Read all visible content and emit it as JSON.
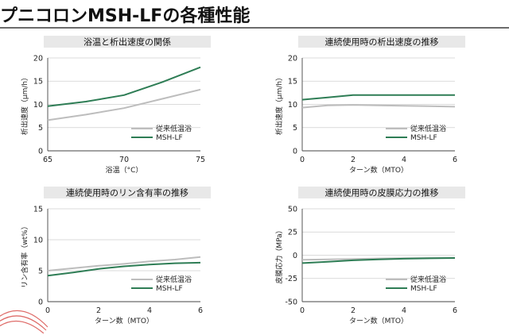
{
  "page": {
    "title": "プニコロンMSH-LFの各種性能"
  },
  "colors": {
    "conventional": "#bdbdbd",
    "msh_lf": "#2e7d55",
    "title_box": "#e8e8e8",
    "deco": "#d9534f"
  },
  "legend": {
    "series_a": "従来低温浴",
    "series_b": "MSH-LF"
  },
  "chart_data": [
    {
      "type": "line",
      "title": "浴温と析出速度の関係",
      "xlabel": "浴温（°C）",
      "ylabel": "析出速度（µm/h）",
      "xlim": [
        65,
        75
      ],
      "ylim": [
        0,
        20
      ],
      "xticks": [
        65,
        70,
        75
      ],
      "yticks": [
        0,
        5,
        10,
        15,
        20
      ],
      "grid": true,
      "legend_position": "bottom-right",
      "series": [
        {
          "name": "従来低温浴",
          "color": "#bdbdbd",
          "x": [
            65,
            67.5,
            70,
            72.5,
            75
          ],
          "y": [
            6.6,
            7.8,
            9.2,
            11.2,
            13.2
          ]
        },
        {
          "name": "MSH-LF",
          "color": "#2e7d55",
          "x": [
            65,
            67.5,
            70,
            72.5,
            75
          ],
          "y": [
            9.6,
            10.6,
            12.0,
            14.8,
            18.0
          ]
        }
      ]
    },
    {
      "type": "line",
      "title": "連続使用時の析出速度の推移",
      "xlabel": "ターン数（MTO）",
      "ylabel": "析出速度（µm/h）",
      "xlim": [
        0,
        6
      ],
      "ylim": [
        0,
        20
      ],
      "xticks": [
        0,
        2,
        4,
        6
      ],
      "yticks": [
        0,
        5,
        10,
        15,
        20
      ],
      "grid": true,
      "legend_position": "bottom-right",
      "series": [
        {
          "name": "従来低温浴",
          "color": "#bdbdbd",
          "x": [
            0,
            1,
            2,
            3,
            4,
            5,
            6
          ],
          "y": [
            9.3,
            9.8,
            9.9,
            9.8,
            9.7,
            9.6,
            9.5
          ]
        },
        {
          "name": "MSH-LF",
          "color": "#2e7d55",
          "x": [
            0,
            1,
            2,
            3,
            4,
            5,
            6
          ],
          "y": [
            11.0,
            11.5,
            12.0,
            12.0,
            12.0,
            12.0,
            12.0
          ]
        }
      ]
    },
    {
      "type": "line",
      "title": "連続使用時のリン含有率の推移",
      "xlabel": "ターン数（MTO）",
      "ylabel": "リン含有率（wt%）",
      "xlim": [
        0,
        6
      ],
      "ylim": [
        0,
        15
      ],
      "xticks": [
        0,
        2,
        4,
        6
      ],
      "yticks": [
        0,
        5,
        10,
        15
      ],
      "grid": true,
      "legend_position": "bottom-right",
      "series": [
        {
          "name": "従来低温浴",
          "color": "#bdbdbd",
          "x": [
            0,
            1,
            2,
            3,
            4,
            5,
            6
          ],
          "y": [
            5.0,
            5.4,
            5.8,
            6.1,
            6.5,
            6.8,
            7.2
          ]
        },
        {
          "name": "MSH-LF",
          "color": "#2e7d55",
          "x": [
            0,
            1,
            2,
            3,
            4,
            5,
            6
          ],
          "y": [
            4.2,
            4.7,
            5.3,
            5.7,
            6.0,
            6.2,
            6.3
          ]
        }
      ]
    },
    {
      "type": "line",
      "title": "連続使用時の皮膜応力の推移",
      "xlabel": "ターン数（MTO）",
      "ylabel": "皮膜応力（MPa）",
      "xlim": [
        0,
        6
      ],
      "ylim": [
        -50,
        50
      ],
      "xticks": [
        0,
        2,
        4,
        6
      ],
      "yticks": [
        -50,
        -25,
        0,
        25,
        50
      ],
      "grid": true,
      "legend_position": "bottom-right",
      "series": [
        {
          "name": "従来低温浴",
          "color": "#bdbdbd",
          "x": [
            0,
            1,
            2,
            3,
            4,
            5,
            6
          ],
          "y": [
            -5.0,
            -4.5,
            -4.0,
            -3.5,
            -3.2,
            -3.0,
            -2.8
          ]
        },
        {
          "name": "MSH-LF",
          "color": "#2e7d55",
          "x": [
            0,
            1,
            2,
            3,
            4,
            5,
            6
          ],
          "y": [
            -8.5,
            -7.0,
            -5.5,
            -4.5,
            -3.8,
            -3.3,
            -3.0
          ]
        }
      ]
    }
  ]
}
